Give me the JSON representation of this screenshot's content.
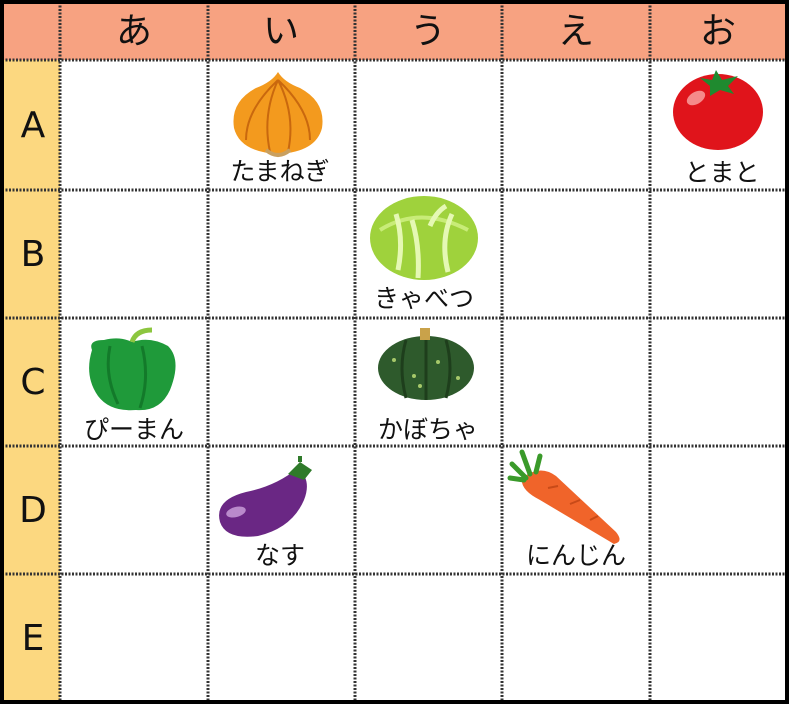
{
  "columns": [
    "あ",
    "い",
    "う",
    "え",
    "お"
  ],
  "rows": [
    "A",
    "B",
    "C",
    "D",
    "E"
  ],
  "items": [
    {
      "label": "たまねぎ"
    },
    {
      "label": "とまと"
    },
    {
      "label": "きゃべつ"
    },
    {
      "label": "ぴーまん"
    },
    {
      "label": "かぼちゃ"
    },
    {
      "label": "なす"
    },
    {
      "label": "にんじん"
    }
  ]
}
